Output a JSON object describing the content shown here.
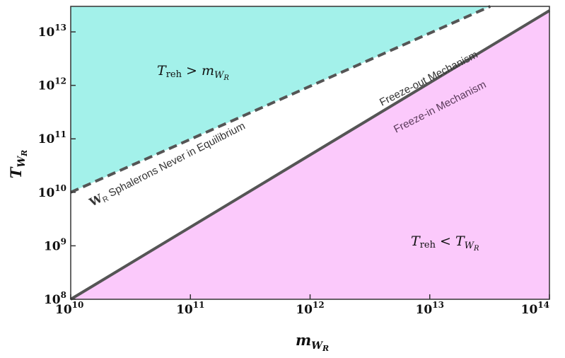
{
  "chart_data": {
    "type": "area",
    "x_scale": "log",
    "y_scale": "log",
    "xlim": [
      10000000000.0,
      100000000000000.0
    ],
    "ylim": [
      100000000.0,
      30000000000000.0
    ],
    "grid": false,
    "xlabel": {
      "main": "m",
      "sub": "W",
      "subsub": "R"
    },
    "ylabel": {
      "main": "T",
      "sub": "W",
      "subsub": "R"
    },
    "x_ticks": [
      {
        "value": 10000000000.0,
        "base": "10",
        "exp": "10"
      },
      {
        "value": 100000000000.0,
        "base": "10",
        "exp": "11"
      },
      {
        "value": 1000000000000.0,
        "base": "10",
        "exp": "12"
      },
      {
        "value": 10000000000000.0,
        "base": "10",
        "exp": "13"
      },
      {
        "value": 100000000000000.0,
        "base": "10",
        "exp": "14"
      }
    ],
    "y_ticks": [
      {
        "value": 100000000.0,
        "base": "10",
        "exp": "8"
      },
      {
        "value": 1000000000.0,
        "base": "10",
        "exp": "9"
      },
      {
        "value": 10000000000.0,
        "base": "10",
        "exp": "10"
      },
      {
        "value": 100000000000.0,
        "base": "10",
        "exp": "11"
      },
      {
        "value": 1000000000000.0,
        "base": "10",
        "exp": "12"
      },
      {
        "value": 10000000000000.0,
        "base": "10",
        "exp": "13"
      }
    ],
    "boundaries": [
      {
        "style": "solid",
        "points": [
          [
            10000000000.0,
            100000000.0
          ],
          [
            100000000000000.0,
            25000000000000.0
          ]
        ],
        "color": "#555555"
      },
      {
        "style": "dashed",
        "points": [
          [
            10000000000.0,
            10000000000.0
          ],
          [
            32000000000000.0,
            30000000000000.0
          ]
        ],
        "color": "#555555"
      }
    ],
    "regions": [
      {
        "fill": "#a3f1ea",
        "label_main": "T",
        "label_sub": "reh",
        "label_op": " > ",
        "label_rhs": "m",
        "label_rhs_sub": "W",
        "label_rhs_subsub": "R"
      },
      {
        "fill": "#fbc9fb",
        "label_main": "T",
        "label_sub": "reh",
        "label_op": " < ",
        "label_rhs": "T",
        "label_rhs_sub": "W",
        "label_rhs_subsub": "R"
      }
    ],
    "annotations": [
      {
        "text_bold": "W",
        "text_sub": "R",
        "text": " Sphalerons Never in Equilibrium"
      },
      {
        "text": "Freeze-out Mechanism"
      },
      {
        "text": "Freeze-in Mechanism"
      }
    ]
  }
}
